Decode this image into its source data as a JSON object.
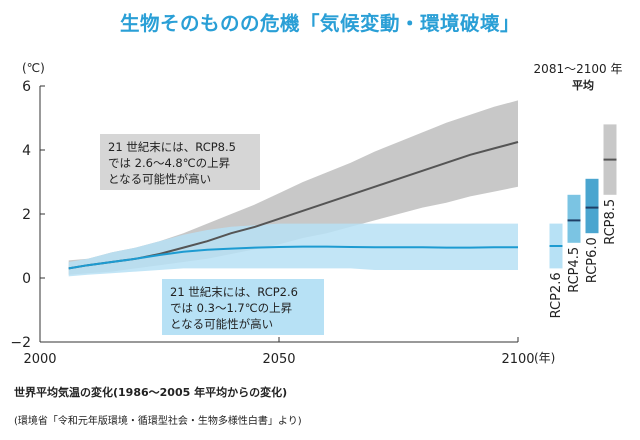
{
  "title": "生物そのものの危機「気候変動・環境破壊」",
  "caption": "世界平均気温の変化(1986〜2005 年平均からの変化)",
  "source": "(環境省「令和元年版環境・循環型社会・生物多様性白書」より)",
  "colors": {
    "title": "#2a9fd6",
    "rcp85_line": "#555555",
    "rcp85_band": "#c8c8c8",
    "rcp26_line": "#1d9bd1",
    "rcp26_band": "#b7e1f5",
    "rcp45_bar": "#7bc4e3",
    "rcp60_bar": "#4aa5cf",
    "median_mark_dark": "#1f3f66"
  },
  "chart_data": {
    "type": "line",
    "ylabel": "(℃)",
    "xlabel": "(年)",
    "xlim": [
      2000,
      2100
    ],
    "ylim": [
      -2,
      6
    ],
    "x_ticks": [
      "2000",
      "2050",
      "2100"
    ],
    "y_ticks": [
      "6",
      "4",
      "2",
      "0",
      "−2"
    ],
    "grid": false,
    "series": [
      {
        "name": "RCP8.5",
        "x": [
          2006,
          2010,
          2015,
          2020,
          2025,
          2030,
          2035,
          2040,
          2045,
          2050,
          2055,
          2060,
          2065,
          2070,
          2075,
          2080,
          2085,
          2090,
          2095,
          2100
        ],
        "mean": [
          0.3,
          0.4,
          0.5,
          0.6,
          0.75,
          0.95,
          1.15,
          1.4,
          1.6,
          1.85,
          2.1,
          2.35,
          2.6,
          2.85,
          3.1,
          3.35,
          3.6,
          3.85,
          4.05,
          4.25
        ],
        "low": [
          0.1,
          0.15,
          0.2,
          0.3,
          0.4,
          0.5,
          0.6,
          0.75,
          0.9,
          1.05,
          1.25,
          1.4,
          1.6,
          1.8,
          2.0,
          2.2,
          2.35,
          2.55,
          2.7,
          2.85
        ],
        "high": [
          0.55,
          0.6,
          0.8,
          0.95,
          1.15,
          1.4,
          1.7,
          2.0,
          2.3,
          2.65,
          3.0,
          3.3,
          3.6,
          3.95,
          4.25,
          4.55,
          4.85,
          5.1,
          5.35,
          5.55
        ]
      },
      {
        "name": "RCP2.6",
        "x": [
          2006,
          2010,
          2015,
          2020,
          2025,
          2030,
          2035,
          2040,
          2045,
          2050,
          2055,
          2060,
          2065,
          2070,
          2075,
          2080,
          2085,
          2090,
          2095,
          2100
        ],
        "mean": [
          0.3,
          0.4,
          0.5,
          0.6,
          0.72,
          0.82,
          0.88,
          0.92,
          0.95,
          0.97,
          0.98,
          0.98,
          0.97,
          0.96,
          0.96,
          0.96,
          0.95,
          0.95,
          0.96,
          0.96
        ],
        "low": [
          0.05,
          0.1,
          0.15,
          0.2,
          0.25,
          0.3,
          0.3,
          0.3,
          0.3,
          0.3,
          0.3,
          0.3,
          0.3,
          0.25,
          0.25,
          0.25,
          0.25,
          0.25,
          0.25,
          0.25
        ],
        "high": [
          0.5,
          0.6,
          0.8,
          0.95,
          1.15,
          1.35,
          1.5,
          1.6,
          1.65,
          1.7,
          1.7,
          1.7,
          1.7,
          1.7,
          1.7,
          1.7,
          1.7,
          1.7,
          1.7,
          1.7
        ]
      }
    ],
    "range_panel": {
      "title_line1": "2081〜2100 年",
      "title_line2": "平均",
      "bars": [
        {
          "name": "RCP2.6",
          "low": 0.3,
          "high": 1.7,
          "median": 1.0
        },
        {
          "name": "RCP4.5",
          "low": 1.1,
          "high": 2.6,
          "median": 1.8
        },
        {
          "name": "RCP6.0",
          "low": 1.4,
          "high": 3.1,
          "median": 2.2
        },
        {
          "name": "RCP8.5",
          "low": 2.6,
          "high": 4.8,
          "median": 3.7
        }
      ]
    },
    "annotations": [
      {
        "series": "RCP8.5",
        "lines": [
          "21 世紀末には、RCP8.5",
          "では 2.6〜4.8℃の上昇",
          "となる可能性が高い"
        ]
      },
      {
        "series": "RCP2.6",
        "lines": [
          "21 世紀末には、RCP2.6",
          "では 0.3〜1.7℃の上昇",
          "となる可能性が高い"
        ]
      }
    ]
  }
}
